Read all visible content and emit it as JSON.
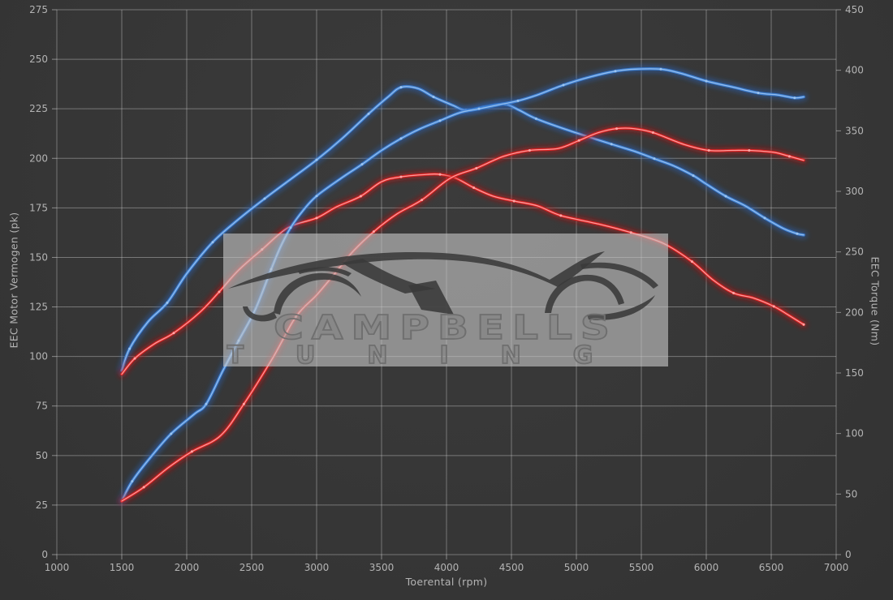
{
  "chart_data": {
    "type": "line",
    "title": "",
    "xlabel": "Toerental (rpm)",
    "ylabel_left": "EEC Motor Vermogen (pk)",
    "ylabel_right": "EEC Torque (Nm)",
    "grid": true,
    "legend": "none",
    "axes": {
      "x": {
        "min": 1000,
        "max": 7000,
        "ticks": [
          1000,
          1500,
          2000,
          2500,
          3000,
          3500,
          4000,
          4500,
          5000,
          5500,
          6000,
          6500,
          7000
        ]
      },
      "y_left": {
        "min": 0,
        "max": 275,
        "ticks": [
          0,
          25,
          50,
          75,
          100,
          125,
          150,
          175,
          200,
          225,
          250,
          275
        ]
      },
      "y_right": {
        "min": 0,
        "max": 450,
        "ticks": [
          0,
          50,
          100,
          150,
          200,
          250,
          300,
          350,
          400,
          450
        ]
      }
    },
    "series": [
      {
        "name": "torque-blue",
        "axis": "y_right",
        "unit": "Nm",
        "color": "blue",
        "points": [
          [
            1500,
            152
          ],
          [
            1560,
            170
          ],
          [
            1700,
            192
          ],
          [
            1850,
            208
          ],
          [
            2000,
            232
          ],
          [
            2200,
            258
          ],
          [
            2400,
            277
          ],
          [
            2600,
            294
          ],
          [
            2800,
            310
          ],
          [
            3000,
            326
          ],
          [
            3200,
            344
          ],
          [
            3400,
            364
          ],
          [
            3550,
            378
          ],
          [
            3650,
            386
          ],
          [
            3780,
            385
          ],
          [
            3900,
            378
          ],
          [
            4050,
            371
          ],
          [
            4150,
            367
          ],
          [
            4300,
            370
          ],
          [
            4450,
            372
          ],
          [
            4560,
            367
          ],
          [
            4690,
            360
          ],
          [
            4950,
            350
          ],
          [
            5270,
            339
          ],
          [
            5450,
            333
          ],
          [
            5600,
            327
          ],
          [
            5750,
            321
          ],
          [
            5900,
            313
          ],
          [
            6000,
            306
          ],
          [
            6150,
            296
          ],
          [
            6300,
            288
          ],
          [
            6450,
            278
          ],
          [
            6600,
            269
          ],
          [
            6700,
            265
          ],
          [
            6750,
            264
          ]
        ]
      },
      {
        "name": "torque-red",
        "axis": "y_right",
        "unit": "Nm",
        "color": "red",
        "points": [
          [
            1500,
            149
          ],
          [
            1600,
            162
          ],
          [
            1750,
            174
          ],
          [
            1900,
            183
          ],
          [
            2100,
            200
          ],
          [
            2250,
            217
          ],
          [
            2400,
            235
          ],
          [
            2580,
            252
          ],
          [
            2780,
            270
          ],
          [
            3000,
            278
          ],
          [
            3150,
            287
          ],
          [
            3340,
            296
          ],
          [
            3500,
            308
          ],
          [
            3650,
            312
          ],
          [
            3850,
            314
          ],
          [
            3950,
            314
          ],
          [
            4070,
            311
          ],
          [
            4210,
            303
          ],
          [
            4360,
            296
          ],
          [
            4520,
            292
          ],
          [
            4700,
            288
          ],
          [
            4880,
            280
          ],
          [
            5170,
            273
          ],
          [
            5420,
            266
          ],
          [
            5670,
            257
          ],
          [
            5890,
            242
          ],
          [
            6050,
            227
          ],
          [
            6210,
            216
          ],
          [
            6360,
            212
          ],
          [
            6520,
            205
          ],
          [
            6630,
            198
          ],
          [
            6750,
            190
          ]
        ]
      },
      {
        "name": "vermogen-blue",
        "axis": "y_left",
        "unit": "pk",
        "color": "blue",
        "points": [
          [
            1500,
            27
          ],
          [
            1580,
            37
          ],
          [
            1720,
            49
          ],
          [
            1880,
            61
          ],
          [
            2060,
            71
          ],
          [
            2150,
            76
          ],
          [
            2280,
            93
          ],
          [
            2400,
            108
          ],
          [
            2530,
            124
          ],
          [
            2650,
            144
          ],
          [
            2720,
            155
          ],
          [
            2800,
            165
          ],
          [
            2900,
            174
          ],
          [
            3000,
            181
          ],
          [
            3190,
            190
          ],
          [
            3350,
            197
          ],
          [
            3500,
            204
          ],
          [
            3650,
            210
          ],
          [
            3800,
            215
          ],
          [
            3950,
            219
          ],
          [
            4100,
            223
          ],
          [
            4250,
            225
          ],
          [
            4400,
            227
          ],
          [
            4550,
            229
          ],
          [
            4700,
            232
          ],
          [
            4900,
            237
          ],
          [
            5100,
            241
          ],
          [
            5300,
            244
          ],
          [
            5450,
            245
          ],
          [
            5650,
            245
          ],
          [
            5800,
            243
          ],
          [
            6000,
            239
          ],
          [
            6200,
            236
          ],
          [
            6400,
            233
          ],
          [
            6550,
            232
          ],
          [
            6680,
            230.5
          ],
          [
            6750,
            231
          ]
        ]
      },
      {
        "name": "vermogen-red",
        "axis": "y_left",
        "unit": "pk",
        "color": "red",
        "points": [
          [
            1500,
            27
          ],
          [
            1670,
            34
          ],
          [
            1860,
            44
          ],
          [
            2040,
            52
          ],
          [
            2260,
            60
          ],
          [
            2440,
            76
          ],
          [
            2660,
            99
          ],
          [
            2840,
            120
          ],
          [
            3000,
            131
          ],
          [
            3130,
            141
          ],
          [
            3280,
            153
          ],
          [
            3440,
            163
          ],
          [
            3620,
            172
          ],
          [
            3810,
            179
          ],
          [
            4030,
            190
          ],
          [
            4230,
            195
          ],
          [
            4440,
            201
          ],
          [
            4640,
            204
          ],
          [
            4860,
            205
          ],
          [
            5020,
            209
          ],
          [
            5170,
            213
          ],
          [
            5310,
            215
          ],
          [
            5440,
            215
          ],
          [
            5590,
            213
          ],
          [
            5830,
            207
          ],
          [
            6020,
            204
          ],
          [
            6200,
            204
          ],
          [
            6330,
            204
          ],
          [
            6520,
            203
          ],
          [
            6640,
            201
          ],
          [
            6750,
            199
          ]
        ]
      }
    ]
  },
  "watermark": {
    "line1": "CAMPBELLS",
    "line2": "TUNING"
  },
  "colors": {
    "background": "#373737",
    "grid": "#d2d2d2",
    "tick_text": "#b4b4b4",
    "blue_core": "#9cc4ef",
    "blue_mid": "#3f82d6",
    "blue_glow": "#2b62b8",
    "red_core": "#ffa8a8",
    "red_mid": "#dd2222",
    "red_glow": "#b51616",
    "watermark_box": "rgba(197,197,197,0.62)",
    "watermark_ink": "#3a3a3a"
  }
}
